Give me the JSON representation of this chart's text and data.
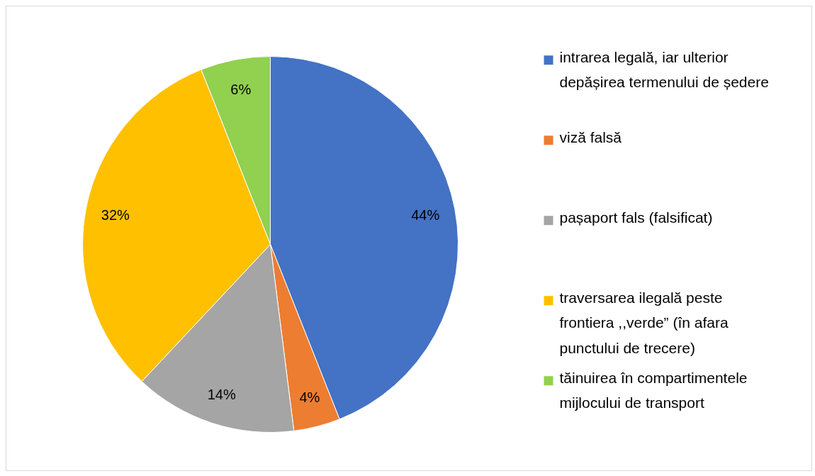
{
  "chart_data": {
    "type": "pie",
    "categories": [
      "intrarea legală, iar ulterior depășirea termenului de ședere",
      "viză falsă",
      "pașaport fals (falsificat)",
      "traversarea ilegală peste frontiera ,,verde” (în afara punctului de trecere)",
      "tăinuirea în compartimentele mijlocului de transport"
    ],
    "values": [
      44,
      4,
      14,
      32,
      6
    ],
    "colors": [
      "#4472c4",
      "#ed7d31",
      "#a5a5a5",
      "#ffc000",
      "#92d050"
    ],
    "value_labels": [
      "44%",
      "4%",
      "14%",
      "32%",
      "6%"
    ],
    "legend": "right"
  }
}
